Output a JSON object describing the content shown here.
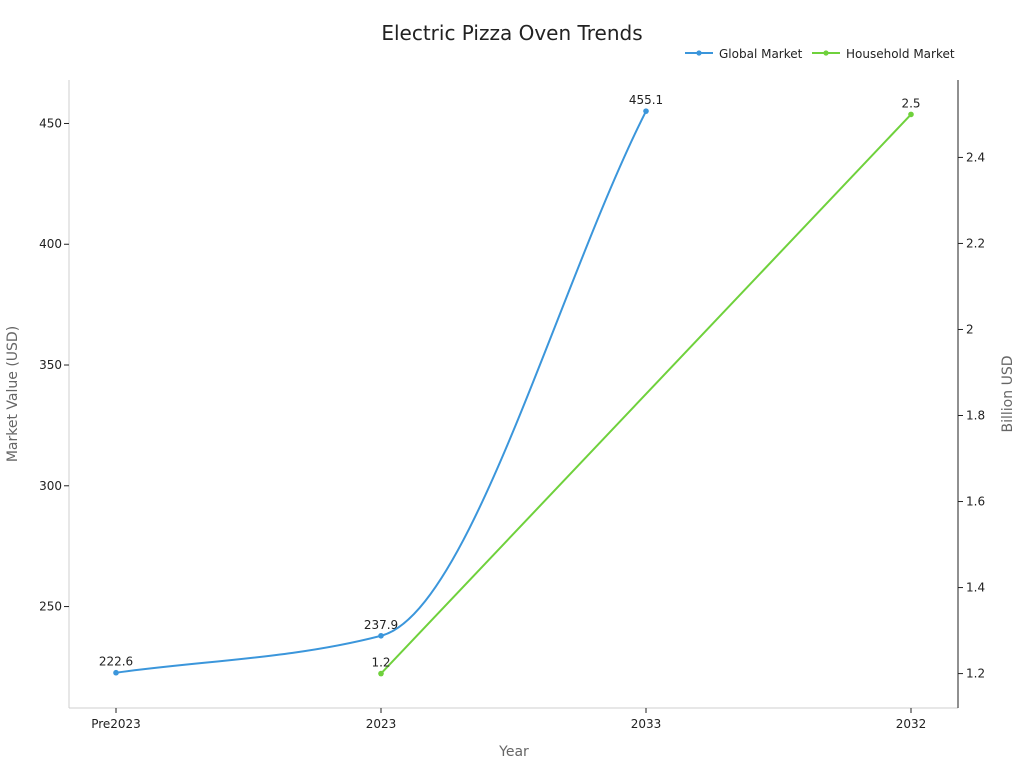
{
  "chart_data": {
    "type": "line",
    "title": "Electric Pizza Oven Trends",
    "xlabel": "Year",
    "ylabel_left": "Market Value (USD)",
    "ylabel_right": "Billion USD",
    "categories": [
      "Pre2023",
      "2023",
      "2033",
      "2032"
    ],
    "y_left": {
      "range": [
        208,
        468
      ],
      "ticks": [
        250,
        300,
        350,
        400,
        450
      ]
    },
    "y_right": {
      "range": [
        1.12,
        2.58
      ],
      "ticks": [
        1.2,
        1.4,
        1.6,
        1.8,
        2,
        2.2,
        2.4
      ]
    },
    "legend_position": "top-right",
    "grid": false,
    "series": [
      {
        "name": "Global Market",
        "axis": "left",
        "color": "#3b96db",
        "smooth": true,
        "values": [
          222.6,
          237.9,
          455.1,
          null
        ],
        "labels": [
          "222.6",
          "237.9",
          "455.1",
          ""
        ]
      },
      {
        "name": "Household Market",
        "axis": "right",
        "color": "#6fd13c",
        "smooth": false,
        "values": [
          null,
          1.2,
          null,
          2.5
        ],
        "labels": [
          "",
          "1.2",
          "",
          "2.5"
        ]
      }
    ]
  }
}
